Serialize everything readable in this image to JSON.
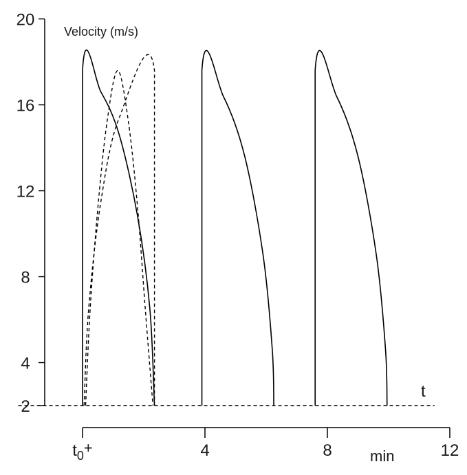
{
  "chart_data": {
    "type": "line",
    "ylabel": "Velocity (m/s)",
    "xlabel_symbol": "t",
    "x_unit": "min",
    "xlim": [
      0,
      12
    ],
    "ylim": [
      2,
      20
    ],
    "y_ticks": [
      2,
      4,
      8,
      12,
      16,
      20
    ],
    "x_ticks": [
      {
        "value": 0,
        "label_main": "t",
        "label_sub": "0",
        "label_suffix": "+"
      },
      {
        "value": 4,
        "label_main": "4",
        "label_sub": "",
        "label_suffix": ""
      },
      {
        "value": 8,
        "label_main": "8",
        "label_sub": "",
        "label_suffix": ""
      },
      {
        "value": 12,
        "label_main": "12",
        "label_sub": "",
        "label_suffix": ""
      }
    ],
    "baseline": {
      "y": 2,
      "style": "dashed",
      "x_range": [
        -2.1,
        11.5
      ]
    },
    "series": [
      {
        "style": "solid",
        "points": [
          [
            0,
            2
          ],
          [
            0,
            17.6
          ],
          [
            0.6,
            16.6
          ],
          [
            1.2,
            14.6
          ],
          [
            1.8,
            10.8
          ],
          [
            2.2,
            6.5
          ],
          [
            2.35,
            2
          ]
        ]
      },
      {
        "style": "solid",
        "points": [
          [
            3.9,
            2
          ],
          [
            3.9,
            17.6
          ],
          [
            4.6,
            16.4
          ],
          [
            5.3,
            13.6
          ],
          [
            5.9,
            9.0
          ],
          [
            6.2,
            4.6
          ],
          [
            6.25,
            2
          ]
        ]
      },
      {
        "style": "solid",
        "points": [
          [
            7.6,
            2
          ],
          [
            7.6,
            17.6
          ],
          [
            8.3,
            16.4
          ],
          [
            9.0,
            13.6
          ],
          [
            9.6,
            9.0
          ],
          [
            9.9,
            4.6
          ],
          [
            9.95,
            2
          ]
        ]
      },
      {
        "style": "dashed",
        "points": [
          [
            0.1,
            2
          ],
          [
            0.25,
            6.5
          ],
          [
            0.5,
            11.2
          ],
          [
            0.8,
            15.2
          ],
          [
            1.15,
            17.6
          ],
          [
            1.5,
            15.2
          ],
          [
            1.8,
            11.2
          ],
          [
            2.05,
            6.5
          ],
          [
            2.3,
            2
          ]
        ]
      },
      {
        "style": "dashed",
        "points": [
          [
            0.05,
            2
          ],
          [
            0.2,
            6.5
          ],
          [
            0.6,
            11.5
          ],
          [
            1.2,
            15.4
          ],
          [
            2.35,
            17.6
          ],
          [
            2.35,
            2
          ]
        ]
      }
    ]
  }
}
